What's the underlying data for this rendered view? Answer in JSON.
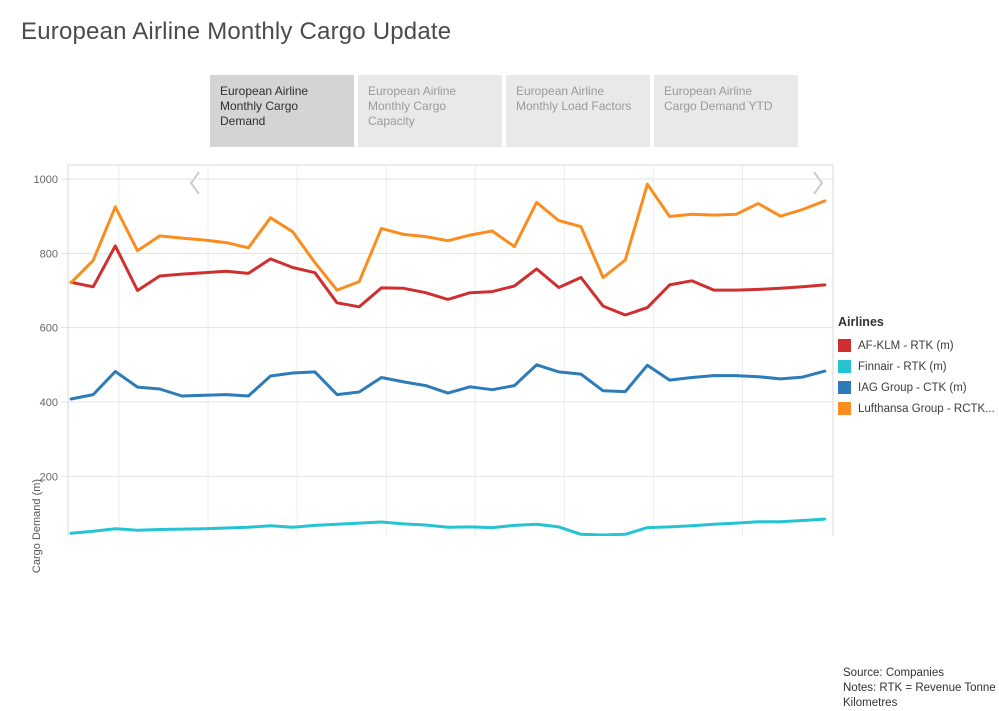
{
  "page": {
    "title": "European Airline Monthly Cargo Update"
  },
  "carousel": {
    "tabs": [
      {
        "label": "European Airline Monthly Cargo Demand",
        "active": true
      },
      {
        "label": "European Airline Monthly Cargo Capacity",
        "active": false
      },
      {
        "label": "European Airline Monthly Load Factors",
        "active": false
      },
      {
        "label": "European Airline Cargo Demand YTD",
        "active": false
      }
    ]
  },
  "legend": {
    "title": "Airlines"
  },
  "footer": {
    "source": "Source: Companies",
    "notes": "Notes: RTK = Revenue Tonne Kilometres"
  },
  "chart_data": {
    "type": "line",
    "title": "European Airline Monthly Cargo Demand",
    "ylabel": "Cargo Demand (m)",
    "ylim": [
      0,
      1000
    ],
    "yticks": [
      200,
      400,
      600,
      800,
      1000
    ],
    "grid": true,
    "legend_position": "right",
    "x_note": "x-axis (monthly) tick labels are cut off below the visible viewport",
    "x": [
      1,
      2,
      3,
      4,
      5,
      6,
      7,
      8,
      9,
      10,
      11,
      12,
      13,
      14,
      15,
      16,
      17,
      18,
      19,
      20,
      21,
      22,
      23,
      24,
      25,
      26,
      27,
      28,
      29,
      30,
      31,
      32,
      33,
      34,
      35
    ],
    "series": [
      {
        "name": "AF-KLM - RTK (m)",
        "color": "#d02f2f",
        "values": [
          722,
          710,
          820,
          700,
          739,
          744,
          748,
          752,
          746,
          785,
          762,
          748,
          667,
          656,
          707,
          706,
          694,
          676,
          694,
          697,
          712,
          758,
          708,
          735,
          658,
          634,
          654,
          715,
          726,
          701,
          701,
          703,
          706,
          710,
          715
        ]
      },
      {
        "name": "Finnair - RTK (m)",
        "color": "#26c3d3",
        "values": [
          47,
          52,
          59,
          55,
          57,
          58,
          59,
          61,
          63,
          67,
          63,
          68,
          71,
          74,
          77,
          72,
          69,
          63,
          64,
          62,
          68,
          71,
          64,
          44,
          42,
          44,
          62,
          64,
          67,
          71,
          74,
          78,
          78,
          81,
          85
        ]
      },
      {
        "name": "IAG Group - CTK (m)",
        "color": "#2d7bb8",
        "values": [
          408,
          420,
          482,
          440,
          435,
          416,
          418,
          420,
          416,
          470,
          478,
          481,
          420,
          427,
          466,
          454,
          444,
          424,
          441,
          433,
          444,
          500,
          481,
          475,
          430,
          428,
          499,
          459,
          466,
          471,
          471,
          468,
          462,
          467,
          483
        ]
      },
      {
        "name": "Lufthansa Group - RCTK...",
        "color": "#f98d1f",
        "values": [
          721,
          781,
          925,
          807,
          847,
          841,
          836,
          829,
          815,
          896,
          858,
          775,
          701,
          724,
          867,
          851,
          845,
          834,
          849,
          860,
          818,
          937,
          888,
          872,
          735,
          782,
          986,
          899,
          905,
          903,
          905,
          934,
          900,
          918,
          941
        ]
      }
    ]
  }
}
